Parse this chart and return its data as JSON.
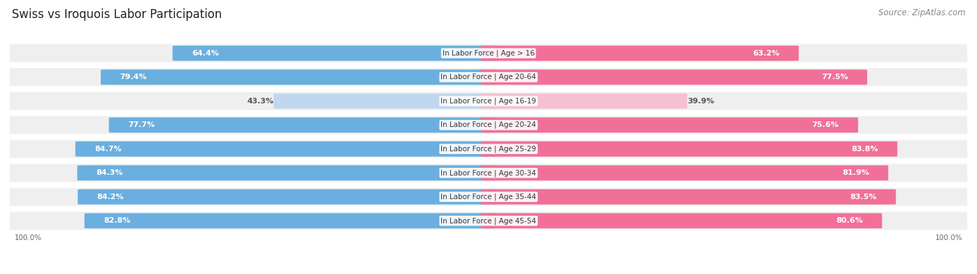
{
  "title": "Swiss vs Iroquois Labor Participation",
  "source": "Source: ZipAtlas.com",
  "categories": [
    "In Labor Force | Age > 16",
    "In Labor Force | Age 20-64",
    "In Labor Force | Age 16-19",
    "In Labor Force | Age 20-24",
    "In Labor Force | Age 25-29",
    "In Labor Force | Age 30-34",
    "In Labor Force | Age 35-44",
    "In Labor Force | Age 45-54"
  ],
  "swiss_values": [
    64.4,
    79.4,
    43.3,
    77.7,
    84.7,
    84.3,
    84.2,
    82.8
  ],
  "iroquois_values": [
    63.2,
    77.5,
    39.9,
    75.6,
    83.8,
    81.9,
    83.5,
    80.6
  ],
  "swiss_color": "#6aafe0",
  "swiss_color_light": "#c0d8ef",
  "iroquois_color": "#f07098",
  "iroquois_color_light": "#f5c0d0",
  "row_bg_color": "#efefef",
  "max_value": 100.0,
  "figsize": [
    14.06,
    3.95
  ],
  "dpi": 100,
  "title_fontsize": 12,
  "value_fontsize": 8,
  "category_fontsize": 7.5,
  "legend_fontsize": 9,
  "source_fontsize": 8.5
}
